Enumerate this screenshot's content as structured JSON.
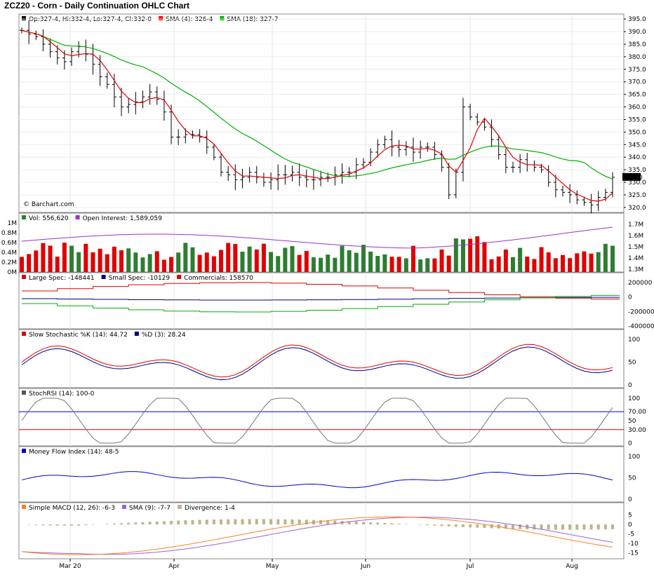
{
  "title": "ZCZ20 - Corn - Daily Continuation OHLC Chart",
  "watermark": "© Barchart.com",
  "x_ticks": [
    "Mar 20",
    "Apr",
    "May",
    "Jun",
    "Jul",
    "Aug"
  ],
  "colors": {
    "up": "#2e7d32",
    "down": "#ff0000",
    "purple": "#9933cc",
    "navy": "#000080",
    "green": "#00b000",
    "red": "#e00000",
    "olive": "#bdb48e",
    "orange": "#ff7f27",
    "blue": "#0000cc"
  },
  "chart_data": [
    {
      "panel": "price",
      "type": "ohlc",
      "legend": [
        {
          "swatch": "#000000",
          "text": "Op:327-4, Hi:332-4, Lo:327-4, Cl:332-0"
        },
        {
          "swatch": "#ff0000",
          "text": "SMA (4): 326-4"
        },
        {
          "swatch": "#00b000",
          "text": "SMA (18): 327-7"
        }
      ],
      "y_ticks": [
        "395.0",
        "390.0",
        "385.0",
        "380.0",
        "375.0",
        "370.0",
        "365.0",
        "360.0",
        "355.0",
        "350.0",
        "345.0",
        "340.0",
        "335.0",
        "330.0",
        "325.0",
        "320.0"
      ],
      "ylim": [
        318,
        397
      ],
      "last_label": "332.0",
      "closes": [
        390.5,
        389,
        388,
        385,
        382,
        379.5,
        378,
        382,
        384,
        381,
        377,
        372,
        369,
        364,
        360,
        361,
        362,
        364,
        366,
        363,
        358,
        348,
        348,
        349,
        349,
        348,
        344,
        340,
        334,
        333,
        331,
        332,
        334,
        332,
        330,
        331,
        333,
        333,
        334,
        332,
        331,
        331,
        332,
        332,
        333,
        334,
        334,
        337,
        338,
        342,
        345,
        347,
        344,
        343,
        344,
        342,
        344,
        344,
        341,
        336,
        325,
        334,
        360,
        356,
        354,
        352,
        347,
        341,
        336,
        336,
        339,
        337,
        336,
        335,
        330,
        327,
        326,
        325,
        323,
        322,
        321,
        324,
        326,
        332.0
      ]
    },
    {
      "panel": "volume",
      "type": "bar",
      "legend": [
        {
          "swatch": "#2e7d32",
          "text": "Vol: 556,620"
        },
        {
          "swatch": "#9933cc",
          "text": "Open Interest: 1,589,059"
        }
      ],
      "y_ticks_left": [
        "1M",
        "0.8M",
        "0.6M",
        "0.4M",
        "0.2M",
        "0M"
      ],
      "y_ticks_right": [
        "1.7M",
        "1.6M",
        "1.5M",
        "1.4M",
        "1.3M"
      ]
    },
    {
      "panel": "cot",
      "type": "step-line",
      "legend": [
        {
          "swatch": "#e00000",
          "text": "Large Spec: -148441"
        },
        {
          "swatch": "#000080",
          "text": "Small Spec: -10129"
        },
        {
          "swatch": "#e00000",
          "text": "Commercials: 158570"
        }
      ],
      "y_ticks": [
        "200000",
        "0",
        "-200000",
        "-400000"
      ]
    },
    {
      "panel": "stoch",
      "type": "line",
      "legend": [
        {
          "swatch": "#e00000",
          "text": "Slow Stochastic %K (14): 44.72"
        },
        {
          "swatch": "#000080",
          "text": "%D (3): 28.24"
        }
      ],
      "y_ticks": [
        "100",
        "50",
        "0"
      ]
    },
    {
      "panel": "stochrsi",
      "type": "line",
      "legend": [
        {
          "swatch": "#555555",
          "text": "StochRSI (14): 100-0"
        }
      ],
      "y_ticks": [
        "100",
        "70.00",
        "50",
        "30.00",
        "0"
      ]
    },
    {
      "panel": "mfi",
      "type": "line",
      "legend": [
        {
          "swatch": "#0000cc",
          "text": "Money Flow Index (14): 48-5"
        }
      ],
      "y_ticks": [
        "100",
        "50",
        "0"
      ]
    },
    {
      "panel": "macd",
      "type": "line+bar",
      "legend": [
        {
          "swatch": "#ff7f27",
          "text": "Simple MACD (12, 26): -6-3"
        },
        {
          "swatch": "#9966cc",
          "text": "SMA (9): -7-7"
        },
        {
          "swatch": "#bdb48e",
          "text": "Divergence: 1-4"
        }
      ],
      "y_ticks": [
        "5",
        "0",
        "-5",
        "-10",
        "-15"
      ]
    }
  ]
}
